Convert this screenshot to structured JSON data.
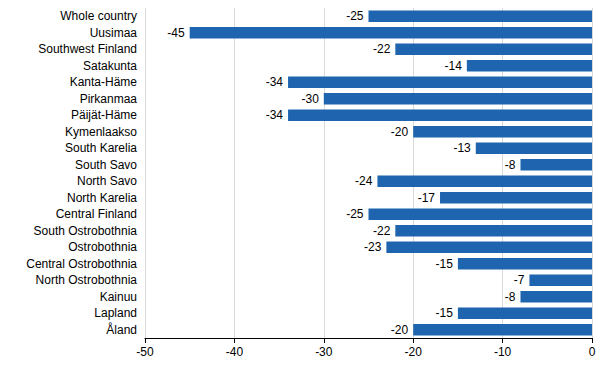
{
  "chart_data": {
    "type": "bar",
    "orientation": "horizontal",
    "categories": [
      "Whole country",
      "Uusimaa",
      "Southwest Finland",
      "Satakunta",
      "Kanta-Häme",
      "Pirkanmaa",
      "Päijät-Häme",
      "Kymenlaakso",
      "South Karelia",
      "South Savo",
      "North Savo",
      "North Karelia",
      "Central Finland",
      "South Ostrobothnia",
      "Ostrobothnia",
      "Central Ostrobothnia",
      "North Ostrobothnia",
      "Kainuu",
      "Lapland",
      "Åland"
    ],
    "values": [
      -25,
      -45,
      -22,
      -14,
      -34,
      -30,
      -34,
      -20,
      -13,
      -8,
      -24,
      -17,
      -25,
      -22,
      -23,
      -15,
      -7,
      -8,
      -15,
      -20
    ],
    "color": "#1f64ae",
    "xlim": [
      -50,
      0
    ],
    "xticks": [
      -50,
      -40,
      -30,
      -20,
      -10,
      0
    ],
    "grid": true,
    "data_labels": true
  }
}
